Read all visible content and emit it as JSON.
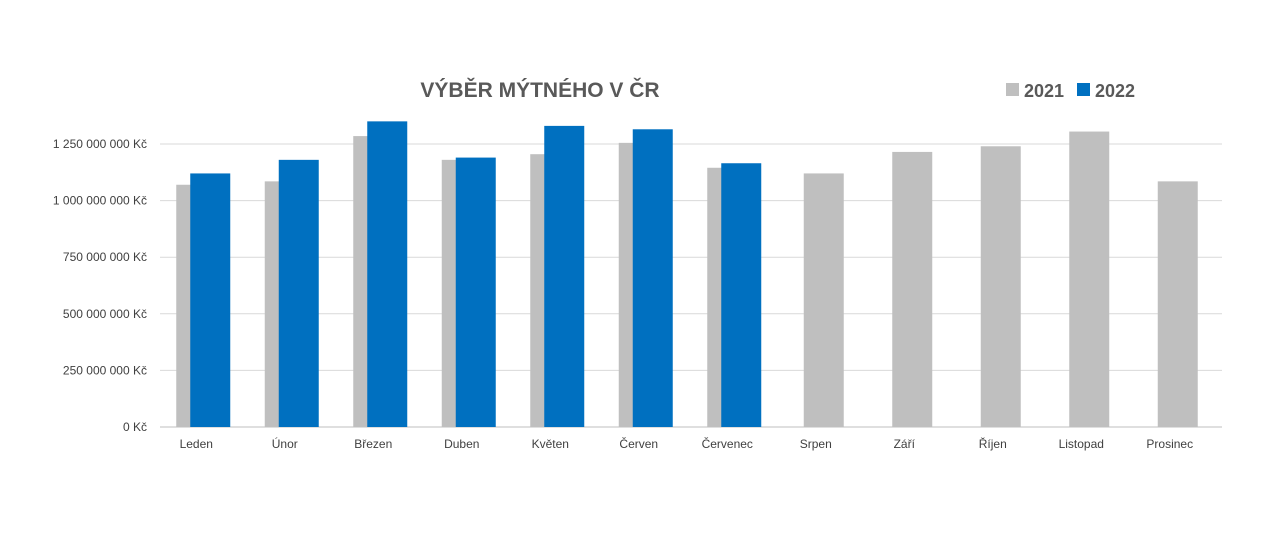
{
  "chart_data": {
    "type": "bar",
    "title": "VÝBĚR MÝTNÉHO V ČR",
    "xlabel": "",
    "ylabel": "",
    "ylim": [
      0,
      1250000000
    ],
    "yticks": [
      0,
      250000000,
      500000000,
      750000000,
      1000000000,
      1250000000
    ],
    "ytick_labels": [
      "0 Kč",
      "250 000 000 Kč",
      "500 000 000 Kč",
      "750 000 000 Kč",
      "1 000 000 000 Kč",
      "1 250 000 000 Kč"
    ],
    "grid": true,
    "legend_position": "top-right",
    "categories": [
      "Leden",
      "Únor",
      "Březen",
      "Duben",
      "Květen",
      "Červen",
      "Červenec",
      "Srpen",
      "Září",
      "Říjen",
      "Listopad",
      "Prosinec"
    ],
    "series": [
      {
        "name": "2021",
        "color": "#bfbfbf",
        "values": [
          1070000000,
          1085000000,
          1285000000,
          1180000000,
          1205000000,
          1255000000,
          1145000000,
          1120000000,
          1215000000,
          1240000000,
          1305000000,
          1085000000
        ]
      },
      {
        "name": "2022",
        "color": "#0070c0",
        "values": [
          1120000000,
          1180000000,
          1350000000,
          1190000000,
          1330000000,
          1315000000,
          1165000000,
          null,
          null,
          null,
          null,
          null
        ]
      }
    ]
  }
}
